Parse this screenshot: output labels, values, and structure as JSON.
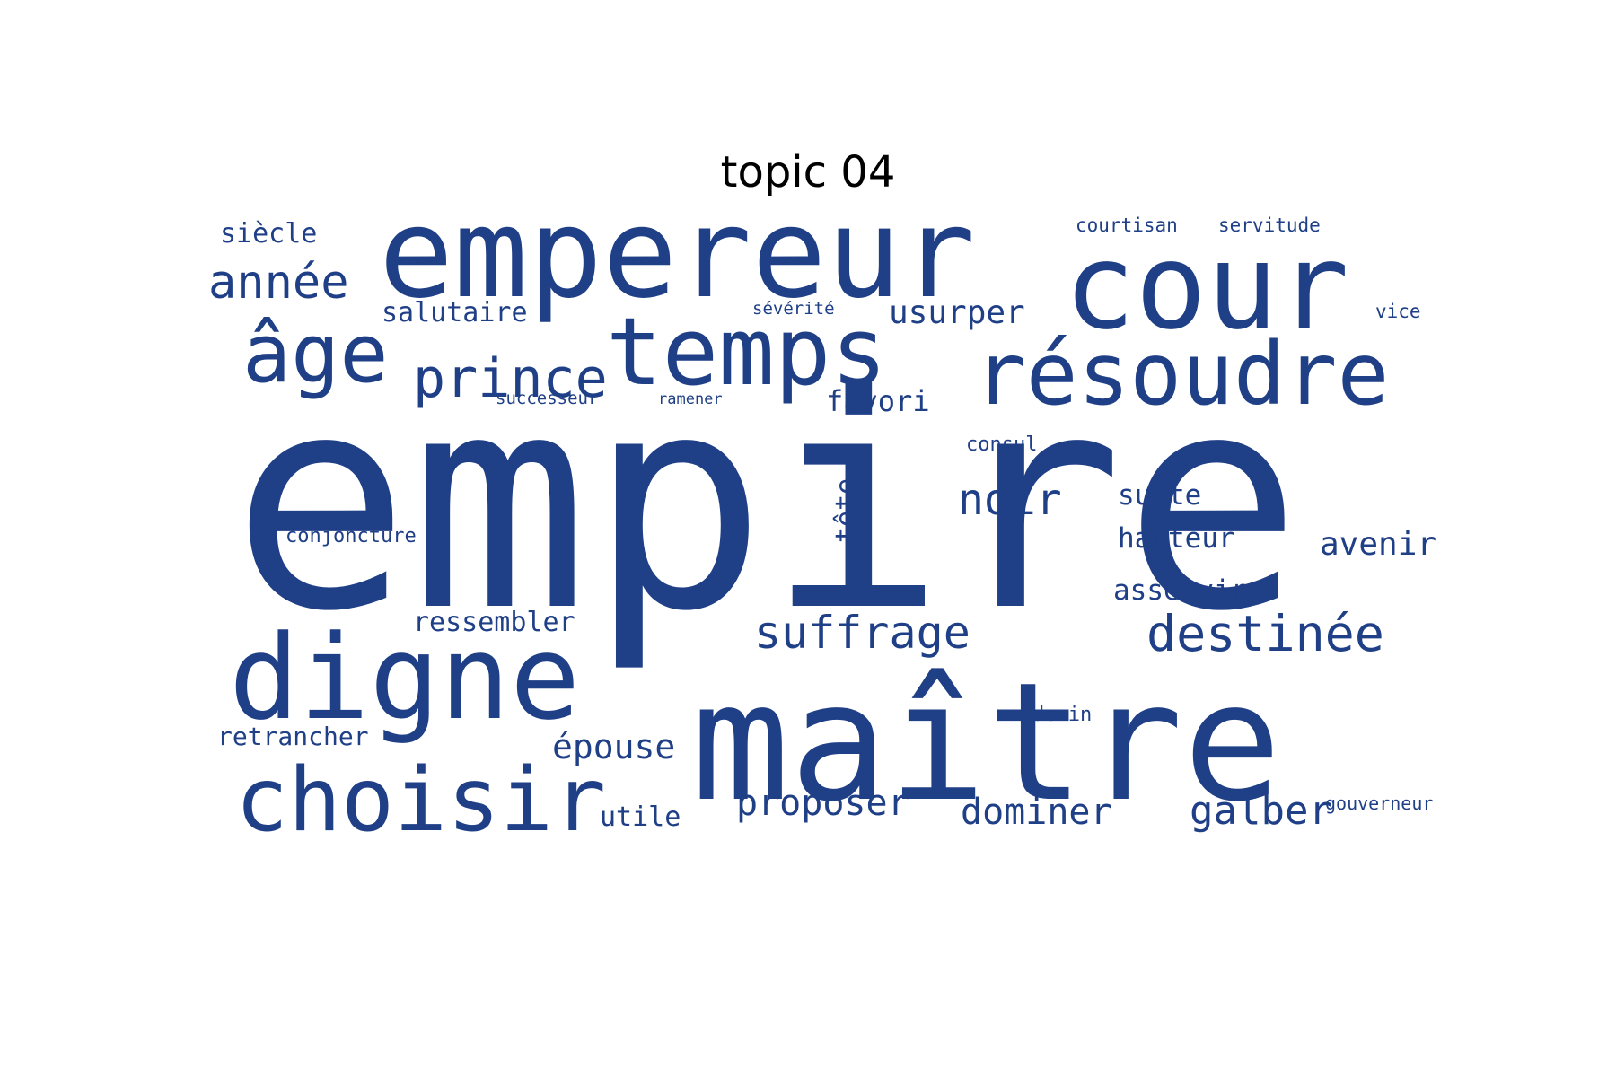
{
  "title": "topic 04",
  "word_color": "#1f3f87",
  "background_color": "#ffffff",
  "words": [
    {
      "text": "empire",
      "weight": 1.0
    },
    {
      "text": "maître",
      "weight": 0.55
    },
    {
      "text": "empereur",
      "weight": 0.42
    },
    {
      "text": "cour",
      "weight": 0.4
    },
    {
      "text": "digne",
      "weight": 0.4
    },
    {
      "text": "temps",
      "weight": 0.32
    },
    {
      "text": "résoudre",
      "weight": 0.29
    },
    {
      "text": "choisir",
      "weight": 0.3
    },
    {
      "text": "âge",
      "weight": 0.28
    },
    {
      "text": "prince",
      "weight": 0.22
    },
    {
      "text": "année",
      "weight": 0.19
    },
    {
      "text": "destinée",
      "weight": 0.18
    },
    {
      "text": "suffrage",
      "weight": 0.17
    },
    {
      "text": "noir",
      "weight": 0.16
    },
    {
      "text": "galber",
      "weight": 0.15
    },
    {
      "text": "dominer",
      "weight": 0.14
    },
    {
      "text": "proposer",
      "weight": 0.14
    },
    {
      "text": "avenir",
      "weight": 0.13
    },
    {
      "text": "usurper",
      "weight": 0.13
    },
    {
      "text": "épouse",
      "weight": 0.13
    },
    {
      "text": "favori",
      "weight": 0.12
    },
    {
      "text": "hauteur",
      "weight": 0.11
    },
    {
      "text": "asservir",
      "weight": 0.11
    },
    {
      "text": "suite",
      "weight": 0.11
    },
    {
      "text": "tête",
      "weight": 0.11
    },
    {
      "text": "utile",
      "weight": 0.11
    },
    {
      "text": "ressembler",
      "weight": 0.11
    },
    {
      "text": "salutaire",
      "weight": 0.11
    },
    {
      "text": "retrancher",
      "weight": 0.1
    },
    {
      "text": "siècle",
      "weight": 0.1
    },
    {
      "text": "consul",
      "weight": 0.08
    },
    {
      "text": "conjoncture",
      "weight": 0.08
    },
    {
      "text": "devin",
      "weight": 0.08
    },
    {
      "text": "courtisan",
      "weight": 0.08
    },
    {
      "text": "servitude",
      "weight": 0.08
    },
    {
      "text": "vice",
      "weight": 0.07
    },
    {
      "text": "sévérité",
      "weight": 0.07
    },
    {
      "text": "gouverneur",
      "weight": 0.07
    },
    {
      "text": "successeur",
      "weight": 0.06
    },
    {
      "text": "ramener",
      "weight": 0.05
    }
  ]
}
